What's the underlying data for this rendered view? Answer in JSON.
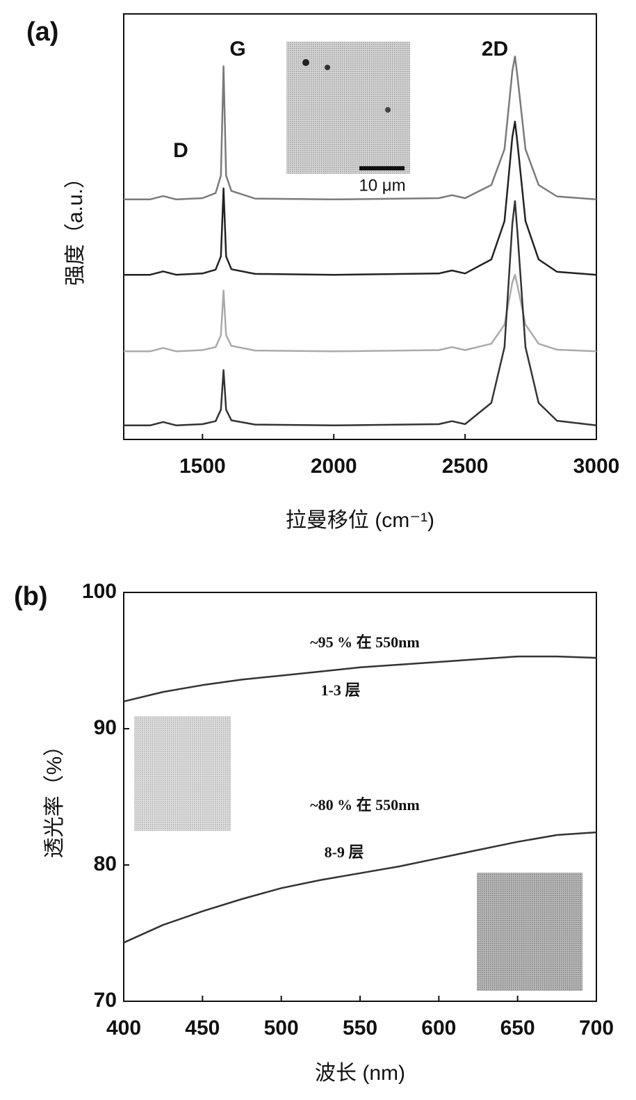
{
  "chart_data": [
    {
      "type": "line",
      "panel_label": "(a)",
      "xlabel": "拉曼移位 (cm⁻¹)",
      "ylabel": "强度（a.u.）",
      "x": [
        1200,
        1300,
        1350,
        1400,
        1500,
        1550,
        1570,
        1580,
        1590,
        1610,
        1700,
        2000,
        2400,
        2450,
        2500,
        2600,
        2650,
        2680,
        2690,
        2700,
        2730,
        2780,
        2850,
        3000
      ],
      "series": [
        {
          "color": "#7a7a7a",
          "values": [
            5.64,
            5.64,
            5.72,
            5.64,
            5.67,
            5.79,
            6.2,
            8.77,
            6.2,
            5.84,
            5.66,
            5.64,
            5.67,
            5.74,
            5.67,
            5.98,
            6.82,
            8.66,
            9.0,
            8.5,
            6.82,
            5.98,
            5.71,
            5.64
          ]
        },
        {
          "color": "#222222",
          "values": [
            3.87,
            3.87,
            3.95,
            3.87,
            3.9,
            3.99,
            4.3,
            5.9,
            4.3,
            4.0,
            3.89,
            3.87,
            3.9,
            3.97,
            3.9,
            4.23,
            5.13,
            7.11,
            7.47,
            6.93,
            5.13,
            4.23,
            3.94,
            3.87
          ]
        },
        {
          "color": "#aaaaaa",
          "values": [
            2.07,
            2.07,
            2.15,
            2.07,
            2.1,
            2.17,
            2.45,
            3.5,
            2.45,
            2.2,
            2.09,
            2.07,
            2.1,
            2.17,
            2.1,
            2.25,
            2.7,
            3.69,
            3.87,
            3.6,
            2.7,
            2.25,
            2.11,
            2.07
          ]
        },
        {
          "color": "#333333",
          "values": [
            0.33,
            0.33,
            0.41,
            0.33,
            0.36,
            0.43,
            0.7,
            1.63,
            0.7,
            0.45,
            0.35,
            0.33,
            0.36,
            0.43,
            0.36,
            0.86,
            2.17,
            5.07,
            5.6,
            4.81,
            2.17,
            0.86,
            0.44,
            0.33
          ]
        }
      ],
      "xlim": [
        1200,
        3000
      ],
      "xticks": [
        1500,
        2000,
        2500,
        3000
      ],
      "ylim": [
        0,
        10
      ],
      "annotations": [
        "D",
        "G",
        "2D",
        "10 μm"
      ]
    },
    {
      "type": "line",
      "panel_label": "(b)",
      "xlabel": "波长 (nm)",
      "ylabel": "透光率（%）",
      "x": [
        400,
        425,
        450,
        475,
        500,
        525,
        550,
        575,
        600,
        625,
        650,
        675,
        700
      ],
      "series": [
        {
          "color": "#333333",
          "values": [
            92.0,
            92.7,
            93.2,
            93.6,
            93.9,
            94.2,
            94.5,
            94.7,
            94.9,
            95.1,
            95.3,
            95.3,
            95.2
          ]
        },
        {
          "color": "#333333",
          "values": [
            74.3,
            75.6,
            76.6,
            77.5,
            78.3,
            78.9,
            79.4,
            79.9,
            80.5,
            81.1,
            81.7,
            82.2,
            82.4
          ]
        }
      ],
      "xlim": [
        400,
        700
      ],
      "xticks": [
        400,
        450,
        500,
        550,
        600,
        650,
        700
      ],
      "ylim": [
        70,
        100
      ],
      "yticks": [
        70,
        80,
        90,
        100
      ],
      "annotations": [
        "~95 % 在 550nm",
        "1-3 层",
        "~80 % 在 550nm",
        "8-9 层"
      ]
    }
  ]
}
